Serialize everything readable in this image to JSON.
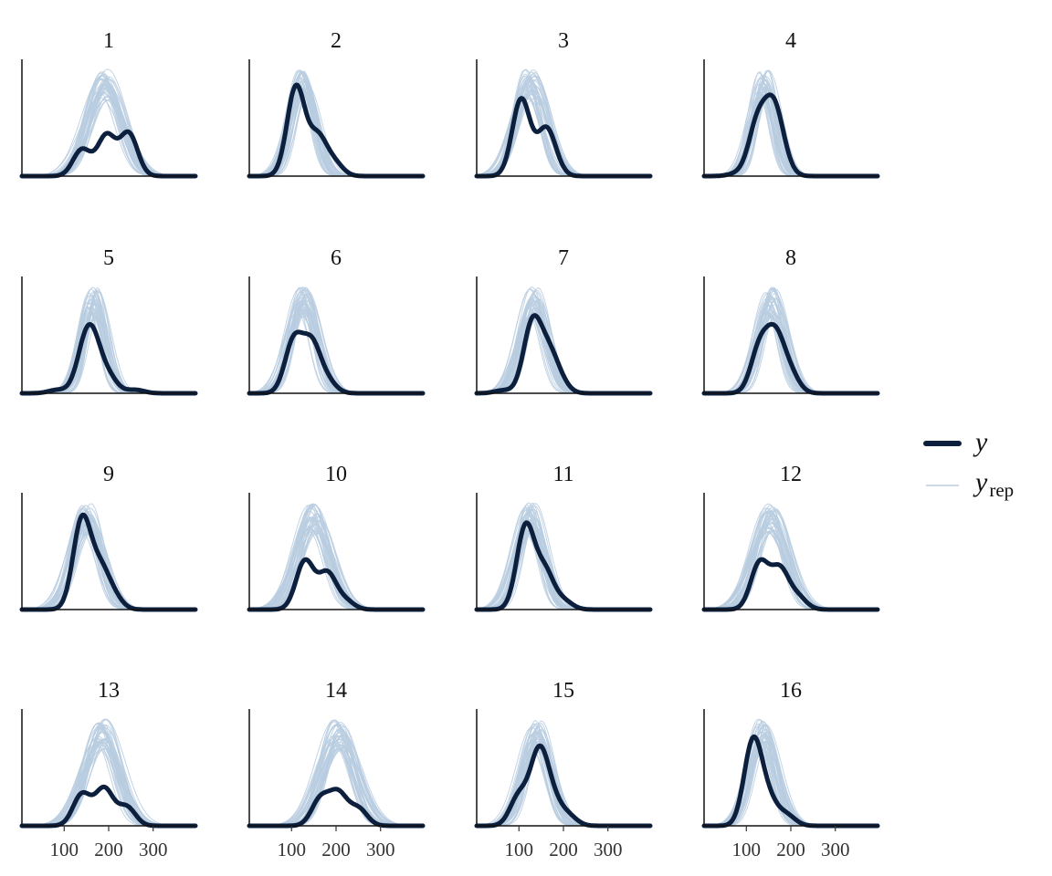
{
  "chart_data": {
    "type": "line",
    "layout": "facet-grid",
    "grid": false,
    "rows": 4,
    "cols": 4,
    "xlim": [
      5,
      395
    ],
    "x_ticks": [
      100,
      200,
      300
    ],
    "x_tick_labels": [
      "100",
      "200",
      "300"
    ],
    "legend": {
      "placement": "right",
      "entries": [
        {
          "label": "y",
          "subscript": "",
          "color": "#0c1f3d"
        },
        {
          "label": "y",
          "subscript": "rep",
          "color": "#b9cde0"
        }
      ]
    },
    "colors": {
      "observed": "#0c1f3d",
      "replicated": "#b9cde0"
    },
    "replicates": 40,
    "panels": [
      {
        "label": "1",
        "y": [
          [
            140,
            0.25
          ],
          [
            195,
            0.38
          ],
          [
            245,
            0.4
          ]
        ],
        "rep": {
          "mu": 190,
          "sd": 38
        }
      },
      {
        "label": "2",
        "y": [
          [
            110,
            0.82
          ],
          [
            158,
            0.35
          ],
          [
            195,
            0.12
          ]
        ],
        "rep": {
          "mu": 125,
          "sd": 28
        }
      },
      {
        "label": "3",
        "y": [
          [
            105,
            0.7
          ],
          [
            158,
            0.32
          ],
          [
            172,
            0.14
          ]
        ],
        "rep": {
          "mu": 125,
          "sd": 33
        }
      },
      {
        "label": "4",
        "y": [
          [
            80,
            0.03
          ],
          [
            125,
            0.62
          ],
          [
            160,
            0.73
          ],
          [
            180,
            0.16
          ]
        ],
        "rep": {
          "mu": 140,
          "sd": 25
        }
      },
      {
        "label": "5",
        "y": [
          [
            85,
            0.05
          ],
          [
            145,
            0.5
          ],
          [
            165,
            0.62
          ],
          [
            200,
            0.22
          ],
          [
            260,
            0.05
          ]
        ],
        "rep": {
          "mu": 165,
          "sd": 25
        }
      },
      {
        "label": "6",
        "y": [
          [
            105,
            0.55
          ],
          [
            145,
            0.5
          ],
          [
            180,
            0.12
          ]
        ],
        "rep": {
          "mu": 125,
          "sd": 30
        }
      },
      {
        "label": "7",
        "y": [
          [
            65,
            0.03
          ],
          [
            130,
            0.7
          ],
          [
            165,
            0.35
          ],
          [
            190,
            0.12
          ]
        ],
        "rep": {
          "mu": 135,
          "sd": 30
        }
      },
      {
        "label": "8",
        "y": [
          [
            130,
            0.52
          ],
          [
            165,
            0.62
          ],
          [
            198,
            0.22
          ]
        ],
        "rep": {
          "mu": 155,
          "sd": 28
        }
      },
      {
        "label": "9",
        "y": [
          [
            140,
            0.85
          ],
          [
            180,
            0.35
          ],
          [
            210,
            0.12
          ]
        ],
        "rep": {
          "mu": 150,
          "sd": 32
        }
      },
      {
        "label": "10",
        "y": [
          [
            130,
            0.45
          ],
          [
            180,
            0.33
          ],
          [
            220,
            0.08
          ]
        ],
        "rep": {
          "mu": 150,
          "sd": 36
        }
      },
      {
        "label": "11",
        "y": [
          [
            115,
            0.78
          ],
          [
            158,
            0.35
          ],
          [
            200,
            0.08
          ]
        ],
        "rep": {
          "mu": 125,
          "sd": 30
        }
      },
      {
        "label": "12",
        "y": [
          [
            130,
            0.45
          ],
          [
            175,
            0.38
          ],
          [
            215,
            0.12
          ]
        ],
        "rep": {
          "mu": 155,
          "sd": 36
        }
      },
      {
        "label": "13",
        "y": [
          [
            140,
            0.3
          ],
          [
            190,
            0.35
          ],
          [
            240,
            0.18
          ]
        ],
        "rep": {
          "mu": 185,
          "sd": 38
        }
      },
      {
        "label": "14",
        "y": [
          [
            165,
            0.28
          ],
          [
            205,
            0.33
          ],
          [
            250,
            0.18
          ]
        ],
        "rep": {
          "mu": 205,
          "sd": 38
        }
      },
      {
        "label": "15",
        "y": [
          [
            100,
            0.3
          ],
          [
            145,
            0.72
          ],
          [
            175,
            0.22
          ],
          [
            210,
            0.1
          ]
        ],
        "rep": {
          "mu": 140,
          "sd": 30
        }
      },
      {
        "label": "16",
        "y": [
          [
            115,
            0.8
          ],
          [
            150,
            0.22
          ],
          [
            190,
            0.1
          ]
        ],
        "rep": {
          "mu": 135,
          "sd": 30
        }
      }
    ]
  }
}
